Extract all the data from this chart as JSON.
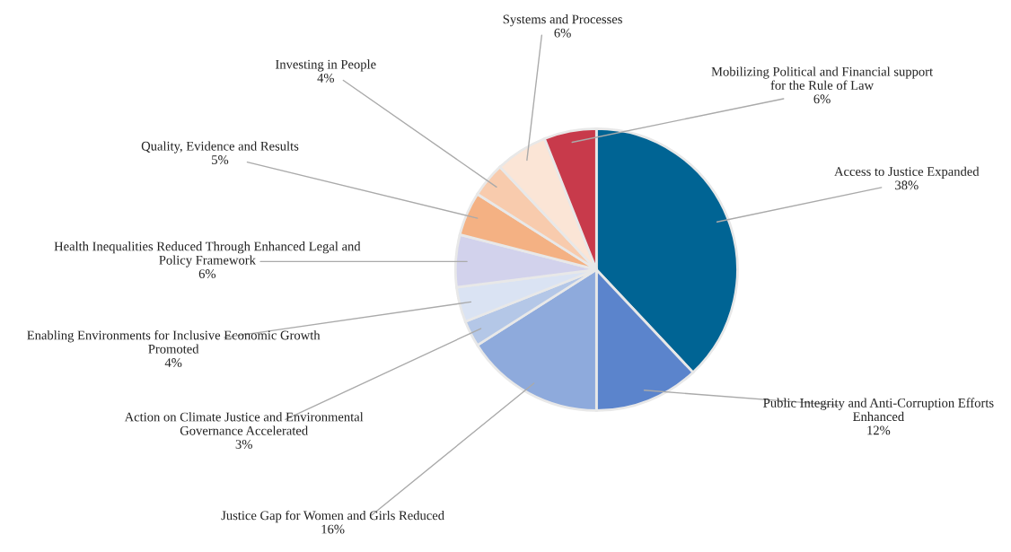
{
  "chart_data": {
    "type": "pie",
    "categories": [
      "Access to Justice Expanded",
      "Public Integrity and Anti-Corruption Efforts\nEnhanced",
      "Justice Gap for Women and Girls Reduced",
      "Action on Climate Justice and Environmental\nGovernance Accelerated",
      "Enabling Environments for Inclusive Economic Growth\nPromoted",
      "Health Inequalities Reduced Through Enhanced Legal and\nPolicy Framework",
      "Quality, Evidence and Results",
      "Investing in People",
      "Systems and Processes",
      "Mobilizing Political and Financial support\nfor the Rule of Law"
    ],
    "values": [
      38,
      12,
      16,
      3,
      4,
      6,
      5,
      4,
      6,
      6
    ],
    "value_labels": [
      "38%",
      "12%",
      "16%",
      "3%",
      "4%",
      "6%",
      "5%",
      "4%",
      "6%",
      "6%"
    ],
    "colors": [
      "#006494",
      "#5b84cc",
      "#8eaadc",
      "#b4c7e7",
      "#dae3f3",
      "#d2d2ec",
      "#f4b183",
      "#f8cbad",
      "#fbe5d6",
      "#c83a4b"
    ],
    "legend": false
  }
}
